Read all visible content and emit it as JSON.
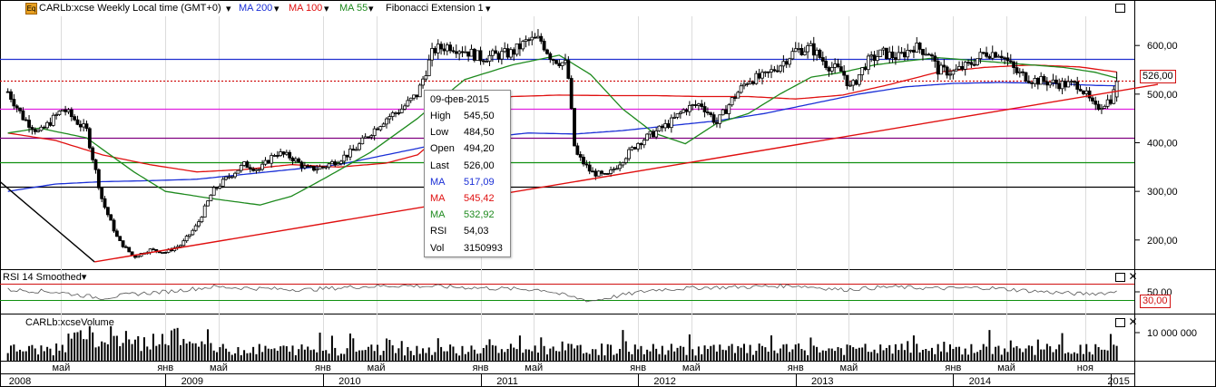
{
  "legend": {
    "symbol": "CARLb:xcse Weekly Local time (GMT+0)",
    "ma200": "MA 200",
    "ma100": "MA 100",
    "ma55": "MA 55",
    "fib": "Fibonacci Extension 1"
  },
  "colors": {
    "ma200": "#1a2fd6",
    "ma100": "#e01010",
    "ma55": "#1e8a1e",
    "fib_line": "#e01010",
    "candle": "#000000"
  },
  "price_axis": {
    "ticks": [
      "600,00",
      "500,00",
      "400,00",
      "300,00",
      "200,00"
    ],
    "current": "526,00"
  },
  "rsi": {
    "title": "RSI 14 Smoothed",
    "ticks": [
      "50,00"
    ],
    "low_tag": "30,00"
  },
  "volume": {
    "title": "CARLb:xcseVolume",
    "ticks": [
      "10 000 000"
    ]
  },
  "time_axis": {
    "months": [
      {
        "label": "май",
        "t": 0.338
      },
      {
        "label": "янв",
        "t": 1.0
      },
      {
        "label": "май",
        "t": 1.338
      },
      {
        "label": "янв",
        "t": 2.0
      },
      {
        "label": "май",
        "t": 2.338
      },
      {
        "label": "янв",
        "t": 3.0
      },
      {
        "label": "май",
        "t": 3.338
      },
      {
        "label": "янв",
        "t": 4.0
      },
      {
        "label": "май",
        "t": 4.338
      },
      {
        "label": "янв",
        "t": 5.0
      },
      {
        "label": "май",
        "t": 5.338
      },
      {
        "label": "янв",
        "t": 6.0
      },
      {
        "label": "май",
        "t": 6.338
      },
      {
        "label": "ноя",
        "t": 6.838
      }
    ],
    "years": [
      {
        "label": "2008",
        "t": -0.19
      },
      {
        "label": "2009",
        "t": 1.17
      },
      {
        "label": "2010",
        "t": 2.17
      },
      {
        "label": "2011",
        "t": 3.17
      },
      {
        "label": "2012",
        "t": 4.17
      },
      {
        "label": "2013",
        "t": 5.17
      },
      {
        "label": "2014",
        "t": 6.17
      },
      {
        "label": "2015",
        "t": 7.05
      }
    ]
  },
  "tooltip": {
    "date": "09-фев-2015",
    "rows": [
      {
        "k": "High",
        "v": "545,50",
        "color": "#000000"
      },
      {
        "k": "Low",
        "v": "484,50",
        "color": "#000000"
      },
      {
        "k": "Open",
        "v": "494,20",
        "color": "#000000"
      },
      {
        "k": "Last",
        "v": "526,00",
        "color": "#000000"
      },
      {
        "k": "MA",
        "v": "517,09",
        "color": "#1a2fd6"
      },
      {
        "k": "MA",
        "v": "545,42",
        "color": "#e01010"
      },
      {
        "k": "MA",
        "v": "532,92",
        "color": "#1e8a1e"
      },
      {
        "k": "RSI",
        "v": "54,03",
        "color": "#000000"
      },
      {
        "k": "Vol",
        "v": "3150993",
        "color": "#000000"
      }
    ]
  },
  "chart_data": {
    "type": "line",
    "x_unit": "years since start of 2008 (weekly)",
    "price_range": [
      140,
      660
    ],
    "anchors": [
      [
        0.0,
        505
      ],
      [
        0.1,
        450
      ],
      [
        0.2,
        420
      ],
      [
        0.35,
        470
      ],
      [
        0.5,
        425
      ],
      [
        0.6,
        280
      ],
      [
        0.7,
        200
      ],
      [
        0.8,
        165
      ],
      [
        0.9,
        180
      ],
      [
        1.0,
        175
      ],
      [
        1.1,
        190
      ],
      [
        1.2,
        230
      ],
      [
        1.3,
        300
      ],
      [
        1.4,
        330
      ],
      [
        1.5,
        355
      ],
      [
        1.6,
        345
      ],
      [
        1.7,
        380
      ],
      [
        1.8,
        370
      ],
      [
        1.9,
        345
      ],
      [
        2.0,
        350
      ],
      [
        2.1,
        365
      ],
      [
        2.2,
        385
      ],
      [
        2.3,
        420
      ],
      [
        2.4,
        450
      ],
      [
        2.5,
        470
      ],
      [
        2.6,
        500
      ],
      [
        2.7,
        590
      ],
      [
        2.8,
        600
      ],
      [
        2.9,
        590
      ],
      [
        3.0,
        575
      ],
      [
        3.1,
        580
      ],
      [
        3.2,
        585
      ],
      [
        3.3,
        610
      ],
      [
        3.38,
        612
      ],
      [
        3.45,
        575
      ],
      [
        3.55,
        560
      ],
      [
        3.6,
        380
      ],
      [
        3.7,
        340
      ],
      [
        3.8,
        330
      ],
      [
        3.9,
        365
      ],
      [
        4.0,
        400
      ],
      [
        4.1,
        420
      ],
      [
        4.2,
        440
      ],
      [
        4.3,
        470
      ],
      [
        4.4,
        480
      ],
      [
        4.5,
        440
      ],
      [
        4.6,
        490
      ],
      [
        4.7,
        530
      ],
      [
        4.8,
        535
      ],
      [
        4.9,
        560
      ],
      [
        5.0,
        590
      ],
      [
        5.1,
        595
      ],
      [
        5.2,
        560
      ],
      [
        5.3,
        545
      ],
      [
        5.35,
        510
      ],
      [
        5.45,
        565
      ],
      [
        5.55,
        585
      ],
      [
        5.65,
        575
      ],
      [
        5.75,
        598
      ],
      [
        5.85,
        585
      ],
      [
        5.9,
        550
      ],
      [
        6.0,
        545
      ],
      [
        6.1,
        560
      ],
      [
        6.2,
        585
      ],
      [
        6.3,
        585
      ],
      [
        6.4,
        545
      ],
      [
        6.5,
        530
      ],
      [
        6.6,
        525
      ],
      [
        6.7,
        520
      ],
      [
        6.8,
        520
      ],
      [
        6.9,
        470
      ],
      [
        7.0,
        490
      ],
      [
        7.05,
        526
      ]
    ],
    "ma55": [
      [
        0.0,
        420
      ],
      [
        0.2,
        430
      ],
      [
        0.5,
        410
      ],
      [
        0.8,
        340
      ],
      [
        1.0,
        300
      ],
      [
        1.3,
        285
      ],
      [
        1.6,
        272
      ],
      [
        1.8,
        290
      ],
      [
        2.0,
        325
      ],
      [
        2.3,
        380
      ],
      [
        2.6,
        450
      ],
      [
        2.9,
        530
      ],
      [
        3.2,
        560
      ],
      [
        3.5,
        580
      ],
      [
        3.7,
        540
      ],
      [
        3.9,
        470
      ],
      [
        4.1,
        420
      ],
      [
        4.3,
        398
      ],
      [
        4.5,
        440
      ],
      [
        4.7,
        460
      ],
      [
        4.9,
        500
      ],
      [
        5.1,
        535
      ],
      [
        5.3,
        545
      ],
      [
        5.5,
        560
      ],
      [
        5.7,
        568
      ],
      [
        5.9,
        575
      ],
      [
        6.1,
        570
      ],
      [
        6.3,
        565
      ],
      [
        6.5,
        560
      ],
      [
        6.7,
        555
      ],
      [
        6.9,
        545
      ],
      [
        7.05,
        532
      ]
    ],
    "ma100": [
      [
        0.0,
        420
      ],
      [
        0.3,
        405
      ],
      [
        0.6,
        375
      ],
      [
        0.9,
        355
      ],
      [
        1.2,
        340
      ],
      [
        1.5,
        345
      ],
      [
        1.8,
        355
      ],
      [
        2.1,
        350
      ],
      [
        2.4,
        358
      ],
      [
        2.6,
        375
      ],
      [
        2.8,
        430
      ],
      [
        3.0,
        480
      ],
      [
        3.2,
        495
      ],
      [
        3.5,
        498
      ],
      [
        3.8,
        497
      ],
      [
        4.1,
        497
      ],
      [
        4.4,
        495
      ],
      [
        4.7,
        495
      ],
      [
        5.0,
        490
      ],
      [
        5.3,
        498
      ],
      [
        5.6,
        520
      ],
      [
        5.9,
        545
      ],
      [
        6.2,
        555
      ],
      [
        6.5,
        560
      ],
      [
        6.8,
        556
      ],
      [
        7.05,
        545
      ]
    ],
    "ma200": [
      [
        0.0,
        300
      ],
      [
        0.3,
        315
      ],
      [
        0.6,
        320
      ],
      [
        0.9,
        322
      ],
      [
        1.2,
        325
      ],
      [
        1.5,
        335
      ],
      [
        1.8,
        345
      ],
      [
        2.1,
        355
      ],
      [
        2.4,
        375
      ],
      [
        2.7,
        395
      ],
      [
        3.0,
        410
      ],
      [
        3.3,
        420
      ],
      [
        3.6,
        418
      ],
      [
        3.9,
        425
      ],
      [
        4.2,
        435
      ],
      [
        4.5,
        445
      ],
      [
        4.8,
        460
      ],
      [
        5.1,
        480
      ],
      [
        5.4,
        500
      ],
      [
        5.7,
        515
      ],
      [
        6.0,
        522
      ],
      [
        6.3,
        524
      ],
      [
        6.6,
        522
      ],
      [
        6.9,
        518
      ],
      [
        7.05,
        517
      ]
    ],
    "hlines": [
      {
        "price": 573,
        "color": "#2030d0",
        "style": "solid"
      },
      {
        "price": 528,
        "color": "#d01010",
        "style": "dotted"
      },
      {
        "price": 470,
        "color": "#e020e0",
        "style": "solid"
      },
      {
        "price": 410,
        "color": "#800080",
        "style": "solid"
      },
      {
        "price": 360,
        "color": "#109010",
        "style": "solid"
      },
      {
        "price": 310,
        "color": "#000000",
        "style": "solid"
      }
    ],
    "fib_lines": [
      {
        "from": [
          -0.05,
          320
        ],
        "to": [
          0.55,
          155
        ],
        "color": "#000000"
      },
      {
        "from": [
          0.55,
          155
        ],
        "to": [
          7.3,
          520
        ],
        "color": "#e01010"
      }
    ],
    "rsi_levels": [
      70,
      30
    ],
    "rsi_anchors": [
      [
        0.0,
        55
      ],
      [
        0.3,
        50
      ],
      [
        0.6,
        35
      ],
      [
        0.8,
        45
      ],
      [
        1.0,
        50
      ],
      [
        1.3,
        62
      ],
      [
        1.6,
        58
      ],
      [
        1.9,
        55
      ],
      [
        2.2,
        62
      ],
      [
        2.5,
        65
      ],
      [
        2.8,
        62
      ],
      [
        3.1,
        58
      ],
      [
        3.4,
        55
      ],
      [
        3.55,
        40
      ],
      [
        3.7,
        28
      ],
      [
        3.9,
        42
      ],
      [
        4.1,
        55
      ],
      [
        4.4,
        60
      ],
      [
        4.7,
        62
      ],
      [
        5.0,
        65
      ],
      [
        5.3,
        55
      ],
      [
        5.6,
        62
      ],
      [
        5.9,
        58
      ],
      [
        6.2,
        60
      ],
      [
        6.5,
        52
      ],
      [
        6.8,
        45
      ],
      [
        7.0,
        48
      ],
      [
        7.05,
        54
      ]
    ]
  }
}
